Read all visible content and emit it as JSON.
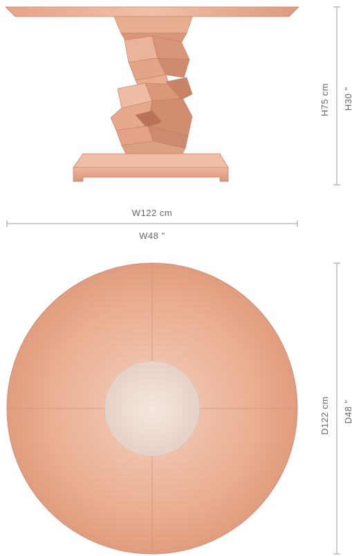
{
  "dimensions": {
    "height_cm": "H75 cm",
    "height_in": "H30 \"",
    "width_cm": "W122 cm",
    "width_in": "W48 \"",
    "diameter_cm": "D122 cm",
    "diameter_in": "D48 \""
  },
  "colors": {
    "wood_light": "#f2c5ad",
    "wood_mid": "#e8a98a",
    "wood_dark": "#cf8a6b",
    "center_disc": "#ecd6cc",
    "dimension_line": "#9a9a9a",
    "text": "#666666"
  }
}
